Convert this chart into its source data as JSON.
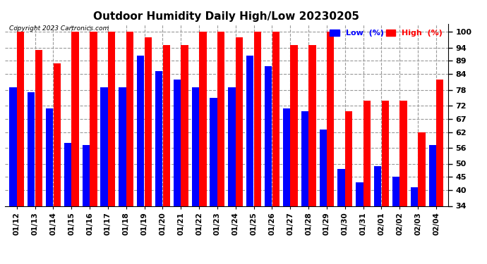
{
  "title": "Outdoor Humidity Daily High/Low 20230205",
  "copyright": "Copyright 2023 Cartronics.com",
  "dates": [
    "01/12",
    "01/13",
    "01/14",
    "01/15",
    "01/16",
    "01/17",
    "01/18",
    "01/19",
    "01/20",
    "01/21",
    "01/22",
    "01/23",
    "01/24",
    "01/25",
    "01/26",
    "01/27",
    "01/28",
    "01/29",
    "01/30",
    "01/31",
    "02/01",
    "02/02",
    "02/03",
    "02/04"
  ],
  "high": [
    100,
    93,
    88,
    100,
    100,
    100,
    100,
    98,
    95,
    95,
    100,
    100,
    98,
    100,
    100,
    95,
    95,
    100,
    70,
    74,
    74,
    74,
    62,
    82
  ],
  "low": [
    79,
    77,
    71,
    58,
    57,
    79,
    79,
    91,
    85,
    82,
    79,
    75,
    79,
    91,
    87,
    71,
    70,
    63,
    48,
    43,
    49,
    45,
    41,
    57
  ],
  "high_color": "#ff0000",
  "low_color": "#0000ff",
  "bg_color": "#ffffff",
  "plot_bg_color": "#ffffff",
  "grid_color": "#999999",
  "yticks": [
    34,
    40,
    45,
    50,
    56,
    62,
    67,
    72,
    78,
    84,
    89,
    94,
    100
  ],
  "ymin": 34,
  "ymax": 103,
  "title_fontsize": 11,
  "legend_label_low": "Low  (%)",
  "legend_label_high": "High  (%)"
}
